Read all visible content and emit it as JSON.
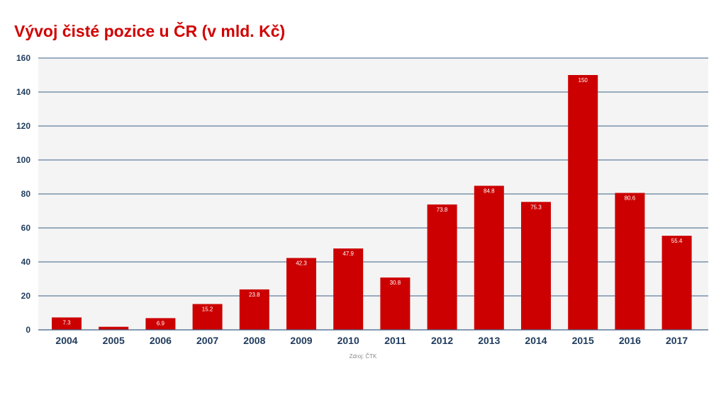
{
  "colors": {
    "bar": "#cc0000",
    "title": "#d10000",
    "axis_text": "#1f3b5c",
    "grid": "#3e5f87",
    "plot_bg": "#f4f4f4",
    "bar_label": "#ffffff"
  },
  "chart_data": {
    "type": "bar",
    "title": "Vývoj čisté pozice u ČR (v mld. Kč)",
    "categories": [
      "2004",
      "2005",
      "2006",
      "2007",
      "2008",
      "2009",
      "2010",
      "2011",
      "2012",
      "2013",
      "2014",
      "2015",
      "2016",
      "2017"
    ],
    "values": [
      7.3,
      1.8,
      6.9,
      15.2,
      23.8,
      42.3,
      47.9,
      30.8,
      73.8,
      84.8,
      75.3,
      150,
      80.6,
      55.4
    ],
    "labels": [
      "7.3",
      "",
      "6.9",
      "15.2",
      "23.8",
      "42.3",
      "47.9",
      "30.8",
      "73.8",
      "84.8",
      "75.3",
      "150",
      "80.6",
      "55.4"
    ],
    "ylim": [
      0,
      160
    ],
    "yticks": [
      "0",
      "20",
      "40",
      "60",
      "80",
      "100",
      "120",
      "140",
      "160"
    ],
    "grid": true,
    "xlabel": "",
    "ylabel": "",
    "source": "Zdroj: ČTK"
  }
}
